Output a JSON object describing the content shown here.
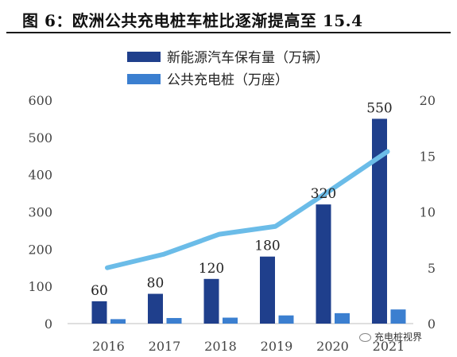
{
  "title": "图 6：欧洲公共充电桩车桩比逐渐提高至 15.4",
  "watermark": "充电桩视界",
  "colors": {
    "bar1": "#1f3f8c",
    "bar2": "#3b7fd0",
    "line": "#6bbce8",
    "axis": "#444444"
  },
  "chart_data": {
    "type": "bar",
    "categories": [
      "2016",
      "2017",
      "2018",
      "2019",
      "2020",
      "2021"
    ],
    "series": [
      {
        "name": "新能源汽车保有量（万辆）",
        "kind": "bar",
        "axis": "left",
        "values": [
          60,
          80,
          120,
          180,
          320,
          550
        ],
        "data_labels": [
          "60",
          "80",
          "120",
          "180",
          "320",
          "550"
        ]
      },
      {
        "name": "公共充电桩（万座）",
        "kind": "bar",
        "axis": "left",
        "values": [
          12,
          15,
          16,
          22,
          28,
          38
        ]
      },
      {
        "name": "",
        "kind": "line",
        "axis": "right",
        "values": [
          5,
          6.2,
          8,
          8.7,
          12,
          15.4
        ]
      }
    ],
    "ylim_left": [
      0,
      600
    ],
    "yticks_left": [
      "0",
      "100",
      "200",
      "300",
      "400",
      "500",
      "600"
    ],
    "ylim_right": [
      0,
      20
    ],
    "yticks_right": [
      "0",
      "5",
      "10",
      "15",
      "20"
    ],
    "grid": false,
    "legend": "top-center"
  }
}
